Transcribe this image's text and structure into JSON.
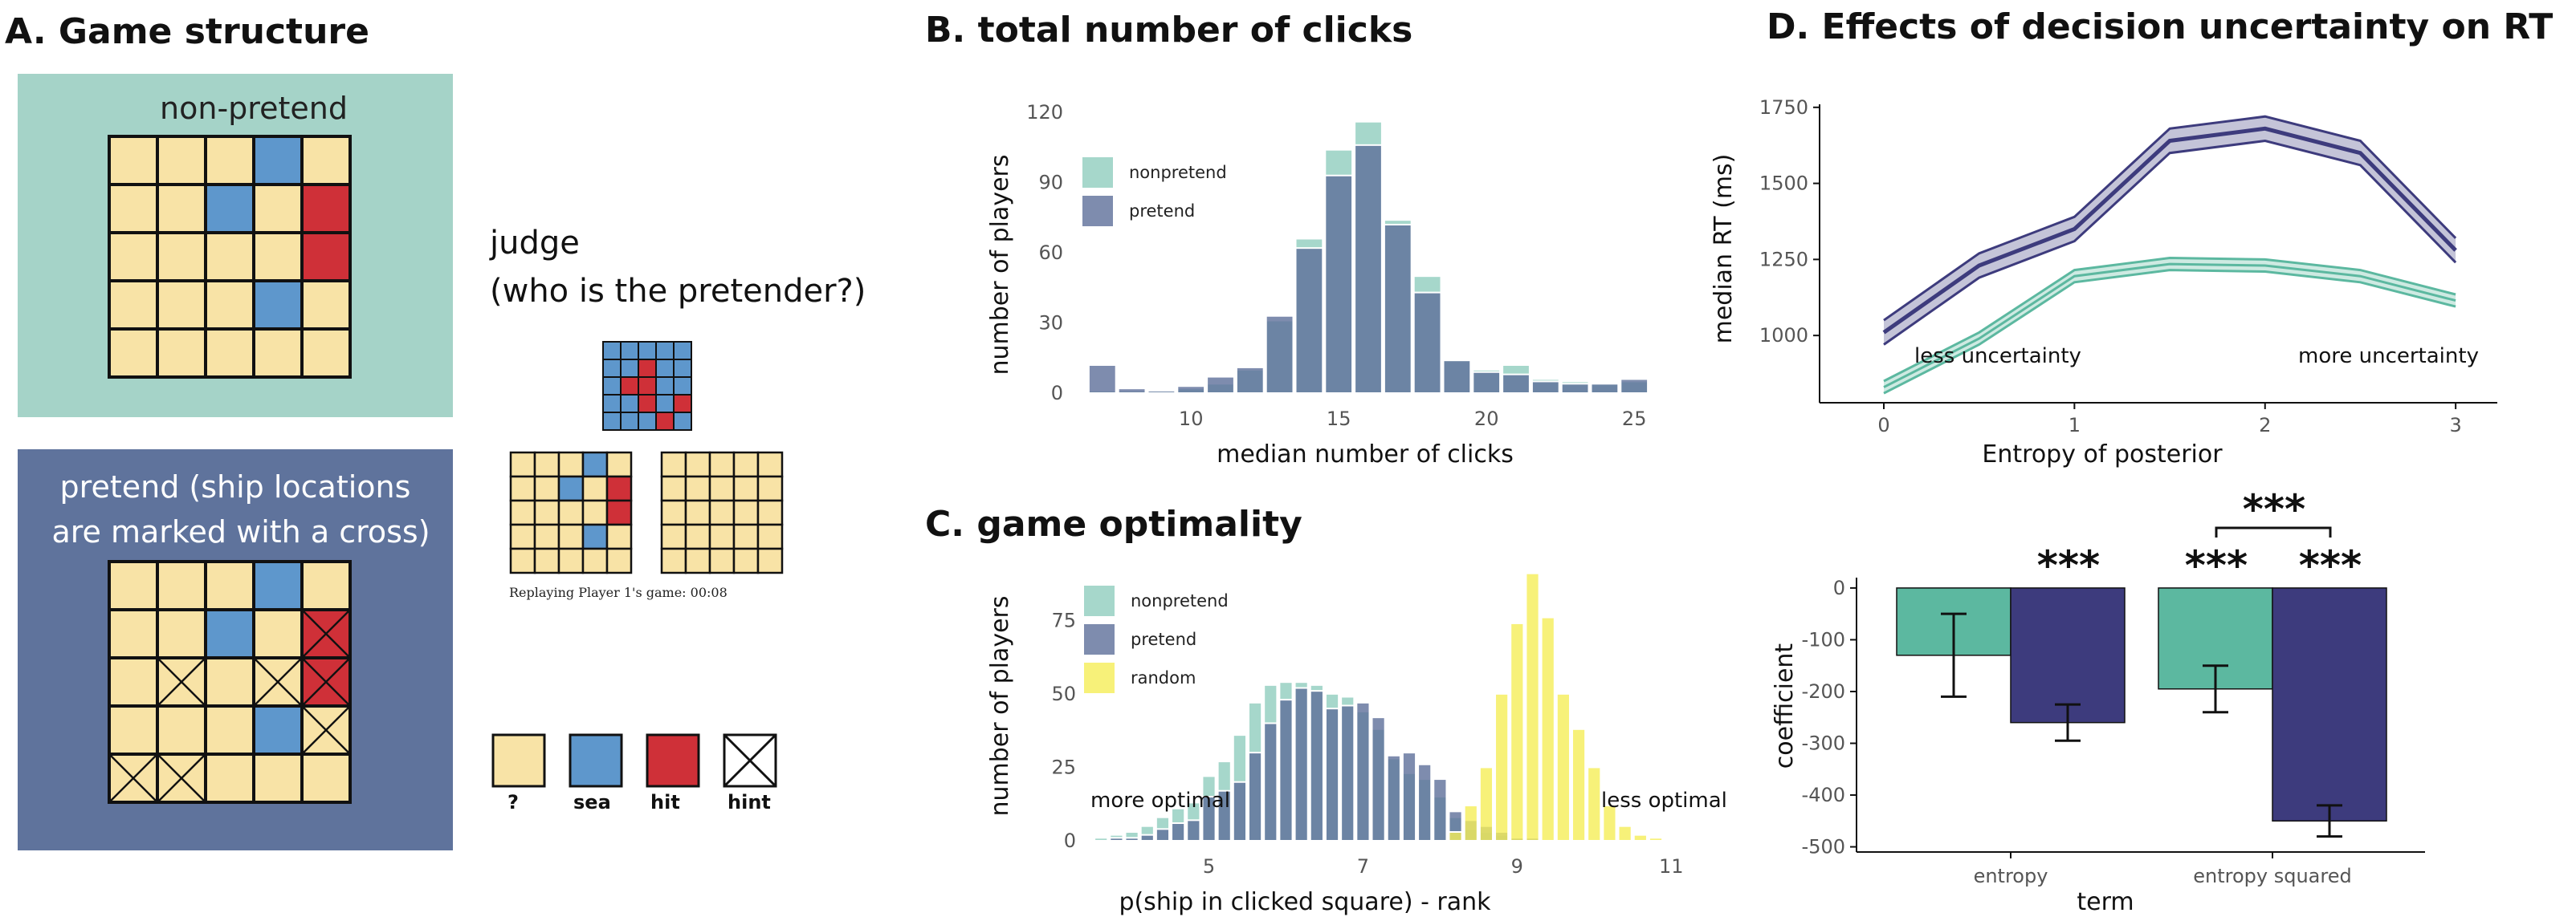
{
  "colors": {
    "nonpretend": "#96d0c2",
    "pretend": "#5e6f9a",
    "random": "#f5ee58",
    "teal": "#5cb8a0",
    "navy": "#3d3b7d",
    "hidden": "#f8e3a6",
    "sea": "#5e97cc",
    "hit": "#cf3038",
    "panelA_top": "#a5d3c8",
    "panelA_bottom": "#5f739c"
  },
  "panelA": {
    "title": "A. Game structure",
    "nonpretend_label": "non-pretend",
    "pretend_label_line1": "pretend (ship locations",
    "pretend_label_line2": "are marked with a cross)",
    "judge_line1": "judge",
    "judge_line2": "(who is the pretender?)",
    "replay_caption": "Replaying Player 1's game: 00:08",
    "grid_nonpretend": [
      "HHHSH",
      "HHSHX",
      "HHHHX",
      "HHHSH",
      "HHHHH"
    ],
    "grid_pretend": [
      "HHHSH",
      "HHSHx",
      "HcHcx",
      "HHHSc",
      "ccHHH"
    ],
    "grid_small": [
      "SSSSS",
      "SSXSS",
      "SXXSS",
      "SSXSX",
      "SSSXS"
    ],
    "grid_replay": [
      "HHHSH",
      "HHSHX",
      "HHHHX",
      "HHHSH",
      "HHHHH"
    ],
    "grid_blank": [
      "HHHHH",
      "HHHHH",
      "HHHHH",
      "HHHHH",
      "HHHHH"
    ],
    "key": [
      {
        "label": "?",
        "kind": "hidden"
      },
      {
        "label": "sea",
        "kind": "sea"
      },
      {
        "label": "hit",
        "kind": "hit"
      },
      {
        "label": "hint",
        "kind": "hint"
      }
    ]
  },
  "chart_data": [
    {
      "id": "B",
      "type": "bar",
      "title": "B. total number of clicks",
      "xlabel": "median number of clicks",
      "ylabel": "number of players",
      "xlim": [
        6,
        26
      ],
      "ylim": [
        0,
        120
      ],
      "xticks": [
        10,
        15,
        20,
        25
      ],
      "yticks": [
        0,
        30,
        60,
        90,
        120
      ],
      "x": [
        7,
        8,
        9,
        10,
        11,
        12,
        13,
        14,
        15,
        16,
        17,
        18,
        19,
        20,
        21,
        22,
        23,
        24,
        25
      ],
      "series": [
        {
          "name": "nonpretend",
          "values": [
            1,
            1,
            1,
            2,
            4,
            10,
            31,
            66,
            104,
            116,
            74,
            50,
            14,
            10,
            12,
            6,
            5,
            4,
            5
          ]
        },
        {
          "name": "pretend",
          "values": [
            12,
            2,
            1,
            3,
            7,
            11,
            33,
            62,
            93,
            106,
            72,
            43,
            14,
            9,
            8,
            5,
            4,
            4,
            6
          ]
        }
      ],
      "legend": "top-left"
    },
    {
      "id": "C",
      "type": "bar",
      "title": "C. game optimality",
      "xlabel": "p(ship in clicked square) - rank",
      "ylabel": "number of players",
      "xlim": [
        3.4,
        11.3
      ],
      "ylim": [
        0,
        95
      ],
      "xticks": [
        5,
        7,
        9,
        11
      ],
      "yticks": [
        0,
        25,
        50,
        75
      ],
      "annotations": [
        "more optimal",
        "less optimal"
      ],
      "x": [
        3.6,
        3.8,
        4.0,
        4.2,
        4.4,
        4.6,
        4.8,
        5.0,
        5.2,
        5.4,
        5.6,
        5.8,
        6.0,
        6.2,
        6.4,
        6.6,
        6.8,
        7.0,
        7.2,
        7.4,
        7.6,
        7.8,
        8.0,
        8.2,
        8.4,
        8.6,
        8.8,
        9.0,
        9.2,
        9.4,
        9.6,
        9.8,
        10.0,
        10.2,
        10.4,
        10.6,
        10.8
      ],
      "series": [
        {
          "name": "nonpretend",
          "values": [
            1,
            2,
            3,
            5,
            8,
            11,
            13,
            22,
            27,
            36,
            47,
            53,
            54,
            54,
            53,
            50,
            49,
            44,
            38,
            28,
            23,
            21,
            15,
            8,
            4,
            3,
            2,
            1,
            0,
            0,
            0,
            0,
            0,
            0,
            0,
            0,
            0
          ]
        },
        {
          "name": "pretend",
          "values": [
            0,
            1,
            1,
            2,
            4,
            6,
            7,
            15,
            17,
            20,
            30,
            40,
            48,
            52,
            51,
            45,
            46,
            47,
            42,
            29,
            30,
            26,
            21,
            10,
            7,
            5,
            3,
            1,
            1,
            0,
            0,
            0,
            0,
            0,
            0,
            0,
            0
          ]
        },
        {
          "name": "random",
          "values": [
            0,
            0,
            0,
            0,
            0,
            0,
            0,
            0,
            0,
            0,
            0,
            0,
            0,
            0,
            0,
            0,
            0,
            0,
            0,
            0,
            0,
            0,
            0,
            3,
            12,
            25,
            50,
            74,
            91,
            76,
            50,
            38,
            25,
            12,
            5,
            2,
            1
          ]
        }
      ],
      "legend": "top-left"
    },
    {
      "id": "D1",
      "type": "line",
      "title": "D. Effects of decision uncertainty on RT",
      "xlabel": "Entropy of posterior",
      "ylabel": "median RT (ms)",
      "xlim": [
        0,
        3.05
      ],
      "ylim": [
        800,
        1760
      ],
      "xticks": [
        0,
        1,
        2,
        3
      ],
      "yticks": [
        1000,
        1250,
        1500,
        1750
      ],
      "annotations": [
        "less uncertainty",
        "more uncertainty"
      ],
      "x": [
        0,
        0.5,
        1,
        1.5,
        2,
        2.5,
        3
      ],
      "series": [
        {
          "name": "pretend",
          "values": [
            1010,
            1230,
            1350,
            1640,
            1680,
            1600,
            1280
          ],
          "ci": 40
        },
        {
          "name": "nonpretend",
          "values": [
            830,
            990,
            1195,
            1235,
            1230,
            1195,
            1115
          ],
          "ci": 20
        }
      ]
    },
    {
      "id": "D2",
      "type": "bar",
      "xlabel": "term",
      "ylabel": "coefficient",
      "ylim": [
        -510,
        20
      ],
      "yticks": [
        0,
        -100,
        -200,
        -300,
        -400,
        -500
      ],
      "categories": [
        "entropy",
        "entropy squared"
      ],
      "series": [
        {
          "name": "nonpretend",
          "values": [
            -130,
            -195
          ],
          "err": [
            80,
            45
          ]
        },
        {
          "name": "pretend",
          "values": [
            -260,
            -450
          ],
          "err": [
            35,
            30
          ]
        }
      ],
      "significance": "***"
    }
  ]
}
